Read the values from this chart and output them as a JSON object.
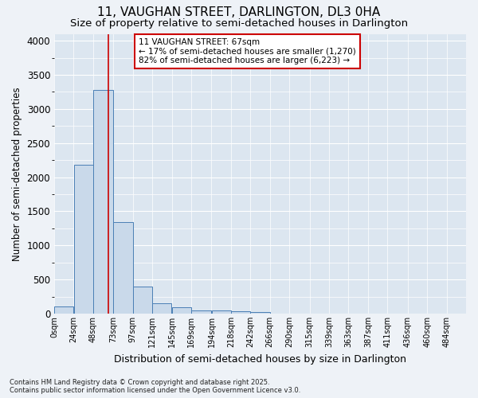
{
  "title_line1": "11, VAUGHAN STREET, DARLINGTON, DL3 0HA",
  "title_line2": "Size of property relative to semi-detached houses in Darlington",
  "xlabel": "Distribution of semi-detached houses by size in Darlington",
  "ylabel": "Number of semi-detached properties",
  "footnote": "Contains HM Land Registry data © Crown copyright and database right 2025.\nContains public sector information licensed under the Open Government Licence v3.0.",
  "bar_color": "#c9d9ea",
  "bar_edge_color": "#4a7fb5",
  "annotation_box_text": "11 VAUGHAN STREET: 67sqm\n← 17% of semi-detached houses are smaller (1,270)\n82% of semi-detached houses are larger (6,223) →",
  "property_size": 67,
  "red_line_x": 67,
  "categories": [
    "0sqm",
    "24sqm",
    "48sqm",
    "73sqm",
    "97sqm",
    "121sqm",
    "145sqm",
    "169sqm",
    "194sqm",
    "218sqm",
    "242sqm",
    "266sqm",
    "290sqm",
    "315sqm",
    "339sqm",
    "363sqm",
    "387sqm",
    "411sqm",
    "436sqm",
    "460sqm",
    "484sqm"
  ],
  "bin_left_edges": [
    0,
    24,
    48,
    73,
    97,
    121,
    145,
    169,
    194,
    218,
    242,
    266,
    290,
    315,
    339,
    363,
    387,
    411,
    436,
    460,
    484
  ],
  "bin_widths": [
    24,
    24,
    25,
    24,
    24,
    24,
    24,
    25,
    24,
    24,
    24,
    24,
    25,
    24,
    24,
    24,
    24,
    25,
    24,
    24,
    24
  ],
  "bar_heights": [
    110,
    2180,
    3280,
    1340,
    400,
    155,
    90,
    50,
    45,
    30,
    20,
    5,
    0,
    0,
    0,
    0,
    0,
    0,
    0,
    0,
    0
  ],
  "ylim": [
    0,
    4100
  ],
  "yticks": [
    0,
    500,
    1000,
    1500,
    2000,
    2500,
    3000,
    3500,
    4000
  ],
  "xlim": [
    0,
    508
  ],
  "background_color": "#eef2f7",
  "plot_background_color": "#dce6f0",
  "grid_color": "#ffffff",
  "red_line_color": "#cc0000",
  "annotation_box_color": "#cc0000",
  "annotation_text_fontsize": 7.5,
  "title_fontsize1": 11,
  "title_fontsize2": 9.5
}
